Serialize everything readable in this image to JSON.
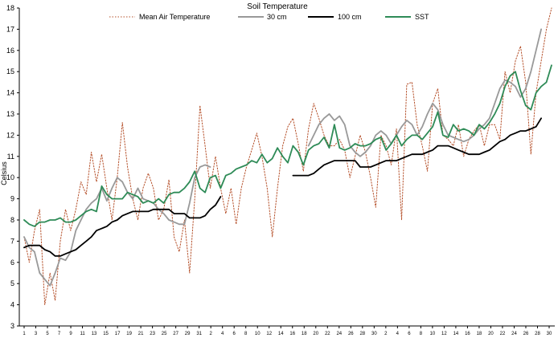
{
  "chart_data": {
    "type": "line",
    "title": "Soil Temperature",
    "ylabel": "Celsius",
    "xlabel": "",
    "ylim": [
      3,
      18
    ],
    "y_ticks": [
      3,
      4,
      5,
      6,
      7,
      8,
      9,
      10,
      11,
      12,
      13,
      14,
      15,
      16,
      17,
      18
    ],
    "x_tick_labels": [
      "1",
      "3",
      "5",
      "7",
      "9",
      "11",
      "13",
      "15",
      "17",
      "19",
      "21",
      "23",
      "25",
      "27",
      "29",
      "31",
      "2",
      "4",
      "6",
      "8",
      "10",
      "12",
      "14",
      "16",
      "18",
      "20",
      "22",
      "24",
      "26",
      "28",
      "30",
      "2",
      "4",
      "6",
      "8",
      "10",
      "12",
      "14",
      "16",
      "18",
      "20",
      "22",
      "24",
      "26",
      "28",
      "30"
    ],
    "legend_position": "top",
    "series": [
      {
        "name": "Mean Air Temperature",
        "color": "#b5502a",
        "style": "dotted",
        "values": [
          7.2,
          6.0,
          7.5,
          8.5,
          4.0,
          5.5,
          4.2,
          7.0,
          8.5,
          7.5,
          8.5,
          9.8,
          9.2,
          11.2,
          9.8,
          11.1,
          9.5,
          8.0,
          10.0,
          12.6,
          10.5,
          9.0,
          8.0,
          9.5,
          10.2,
          9.5,
          8.0,
          8.5,
          9.9,
          7.2,
          6.5,
          8.0,
          5.5,
          9.0,
          13.4,
          11.5,
          9.5,
          11.0,
          9.5,
          8.3,
          9.5,
          7.8,
          9.5,
          10.5,
          11.3,
          12.1,
          11.0,
          9.5,
          7.2,
          9.5,
          11.5,
          12.4,
          12.8,
          11.6,
          10.3,
          12.3,
          13.5,
          12.8,
          12.0,
          11.5,
          11.5,
          11.8,
          11.3,
          10.0,
          11.0,
          12.0,
          11.2,
          10.0,
          8.6,
          12.0,
          11.5,
          10.6,
          12.3,
          8.0,
          14.4,
          14.5,
          12.5,
          11.5,
          10.3,
          13.5,
          14.2,
          12.0,
          11.8,
          11.5,
          12.5,
          11.0,
          11.8,
          12.2,
          12.5,
          11.5,
          12.5,
          12.5,
          11.8,
          15.0,
          14.0,
          15.5,
          16.2,
          14.5,
          11.1,
          14.0,
          15.5,
          17.0,
          18.0
        ],
        "gaps": []
      },
      {
        "name": "30 cm",
        "color": "#999999",
        "style": "solid",
        "values": [
          7.2,
          6.7,
          6.5,
          5.5,
          5.2,
          4.9,
          5.5,
          6.2,
          6.1,
          6.5,
          7.5,
          8.0,
          8.5,
          8.8,
          9.0,
          9.5,
          8.9,
          9.5,
          10.0,
          9.8,
          9.3,
          9.0,
          9.5,
          9.0,
          8.9,
          8.8,
          8.5,
          8.3,
          8.0,
          7.9,
          7.8,
          7.8,
          8.8,
          10.0,
          10.5,
          10.6,
          10.5,
          null,
          null,
          null,
          null,
          null,
          null,
          null,
          null,
          null,
          null,
          null,
          null,
          null,
          null,
          null,
          null,
          null,
          null,
          11.5,
          12.0,
          12.5,
          12.8,
          13.0,
          12.7,
          12.9,
          12.5,
          11.5,
          11.2,
          11.0,
          11.2,
          11.5,
          12.0,
          12.2,
          12.0,
          11.6,
          12.0,
          12.4,
          12.7,
          12.5,
          12.0,
          12.4,
          13.0,
          13.5,
          13.2,
          12.5,
          12.0,
          11.9,
          11.8,
          11.7,
          11.8,
          12.0,
          12.3,
          12.5,
          12.8,
          13.5,
          14.2,
          14.6,
          14.5,
          14.3,
          13.8,
          14.2,
          15.0,
          16.0,
          17.0
        ],
        "gaps": []
      },
      {
        "name": "100 cm",
        "color": "#000000",
        "style": "solid",
        "values": [
          6.7,
          6.8,
          6.8,
          6.8,
          6.6,
          6.5,
          6.3,
          6.3,
          6.4,
          6.5,
          6.6,
          6.8,
          7.0,
          7.2,
          7.5,
          7.6,
          7.7,
          7.9,
          8.0,
          8.2,
          8.3,
          8.4,
          8.4,
          8.4,
          8.4,
          8.5,
          8.5,
          8.5,
          8.5,
          8.3,
          8.3,
          8.3,
          8.1,
          8.1,
          8.1,
          8.2,
          8.5,
          8.7,
          9.1,
          null,
          null,
          null,
          null,
          null,
          null,
          null,
          null,
          null,
          null,
          null,
          null,
          null,
          10.1,
          10.1,
          10.1,
          10.1,
          10.2,
          10.4,
          10.6,
          10.7,
          10.8,
          10.8,
          10.8,
          10.8,
          10.8,
          10.5,
          10.5,
          10.5,
          10.6,
          10.7,
          10.8,
          10.8,
          10.8,
          10.9,
          11.0,
          11.1,
          11.1,
          11.1,
          11.2,
          11.3,
          11.5,
          11.5,
          11.5,
          11.4,
          11.3,
          11.2,
          11.1,
          11.1,
          11.1,
          11.2,
          11.3,
          11.5,
          11.7,
          11.8,
          12.0,
          12.1,
          12.2,
          12.2,
          12.3,
          12.4,
          12.8
        ],
        "gaps": []
      },
      {
        "name": "SST",
        "color": "#2e8b57",
        "style": "solid",
        "values": [
          8.0,
          7.8,
          7.7,
          7.9,
          7.9,
          8.0,
          8.0,
          8.1,
          7.9,
          7.9,
          8.0,
          8.2,
          8.4,
          8.5,
          8.4,
          9.6,
          9.2,
          9.0,
          9.0,
          9.0,
          9.3,
          9.2,
          9.1,
          8.8,
          8.9,
          8.8,
          9.0,
          8.8,
          9.2,
          9.3,
          9.3,
          9.5,
          9.8,
          10.3,
          9.5,
          9.3,
          10.0,
          10.1,
          9.5,
          10.1,
          10.2,
          10.4,
          10.5,
          10.6,
          10.8,
          10.7,
          11.1,
          10.7,
          10.9,
          11.4,
          11.0,
          10.7,
          11.5,
          11.2,
          10.6,
          11.3,
          11.5,
          11.6,
          11.9,
          11.4,
          12.5,
          11.4,
          11.3,
          11.4,
          11.6,
          11.5,
          11.5,
          11.6,
          11.8,
          11.9,
          11.3,
          11.6,
          12.0,
          11.5,
          11.8,
          12.0,
          12.0,
          11.8,
          12.1,
          12.4,
          13.1,
          12.0,
          11.9,
          12.5,
          12.2,
          12.3,
          12.2,
          12.0,
          12.5,
          12.3,
          12.6,
          13.0,
          13.5,
          14.3,
          14.8,
          15.0,
          14.1,
          13.4,
          13.2,
          14.0,
          14.3,
          14.5,
          15.3
        ],
        "gaps": []
      }
    ]
  }
}
